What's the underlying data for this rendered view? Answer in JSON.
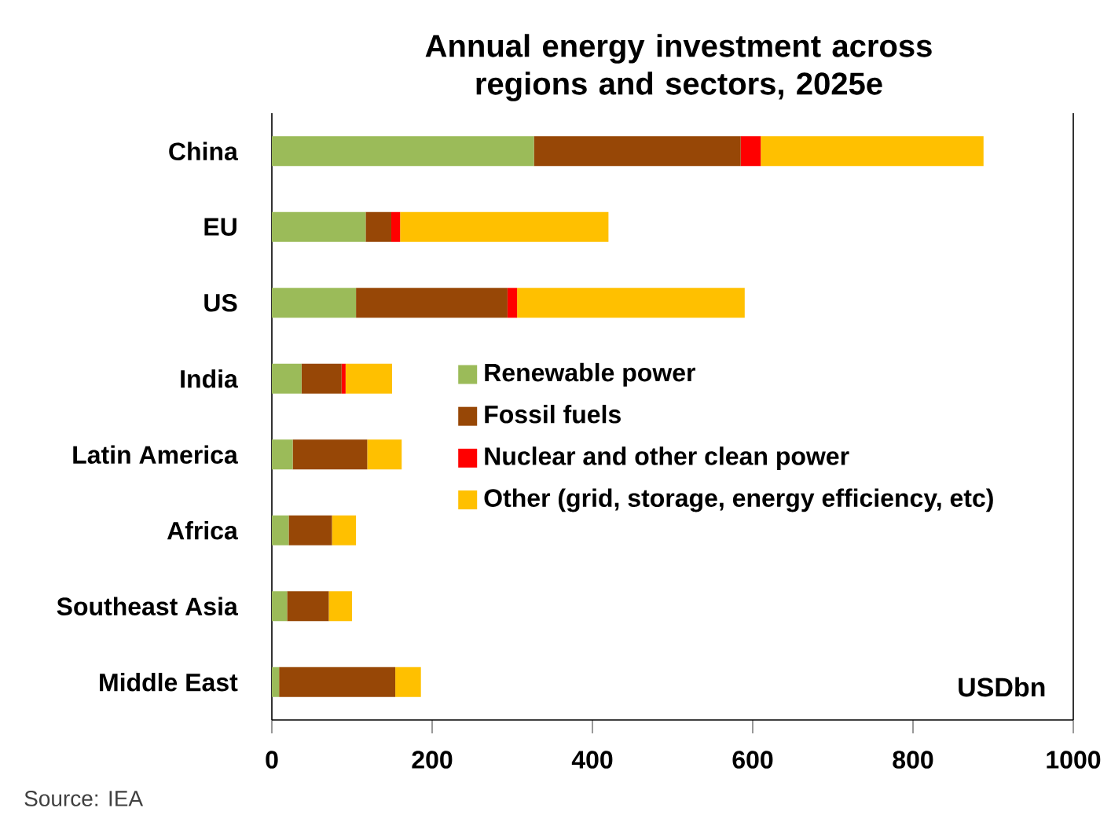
{
  "chart_data": {
    "type": "bar",
    "orientation": "horizontal",
    "stacked": true,
    "title": "Annual energy investment across regions and sectors, 2025e",
    "categories": [
      "China",
      "EU",
      "US",
      "India",
      "Latin America",
      "Africa",
      "Southeast Asia",
      "Middle East"
    ],
    "series": [
      {
        "name": "Renewable power",
        "color": "#9bbb59",
        "values": [
          327,
          117,
          105,
          37,
          26,
          21,
          19,
          9
        ]
      },
      {
        "name": "Fossil fuels",
        "color": "#974706",
        "values": [
          258,
          32,
          189,
          50,
          93,
          54,
          52,
          145
        ]
      },
      {
        "name": "Nuclear and other clean power",
        "color": "#ff0000",
        "values": [
          25,
          11,
          12,
          5,
          0,
          0,
          0,
          0
        ]
      },
      {
        "name": "Other (grid, storage, energy efficiency, etc)",
        "color": "#ffc000",
        "values": [
          278,
          260,
          284,
          58,
          43,
          30,
          29,
          32
        ]
      }
    ],
    "xlim": [
      0,
      1000
    ],
    "xticks": [
      0,
      200,
      400,
      600,
      800,
      1000
    ],
    "legend": "right",
    "grid": false,
    "annotations": [
      "USDbn",
      "Source: IEA"
    ]
  }
}
